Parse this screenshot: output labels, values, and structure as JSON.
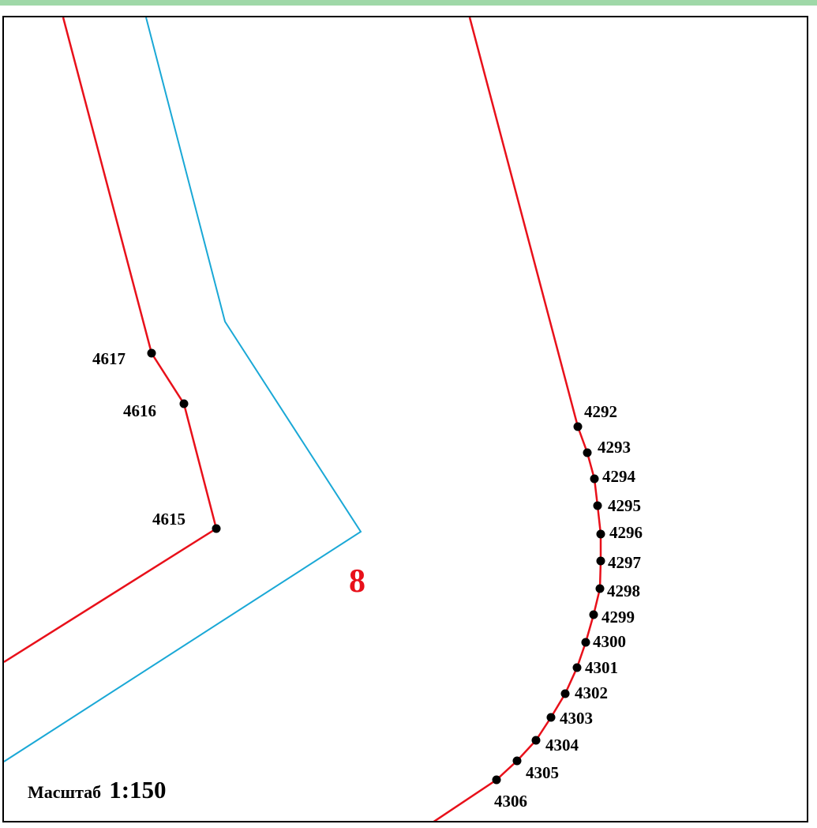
{
  "colors": {
    "boundary_red": "#e8101a",
    "boundary_blue": "#1aa8d6",
    "point_fill": "#000000",
    "parcel_label": "#e8101a",
    "top_strip": "#9fd8a8",
    "frame": "#000000"
  },
  "map": {
    "parcel_number": "8",
    "scale_word": "Масштаб",
    "scale_value": "1:150",
    "point_numbers": {
      "4617": "4617",
      "4616": "4616",
      "4615": "4615",
      "4292": "4292",
      "4293": "4293",
      "4294": "4294",
      "4295": "4295",
      "4296": "4296",
      "4297": "4297",
      "4298": "4298",
      "4299": "4299",
      "4300": "4300",
      "4301": "4301",
      "4302": "4302",
      "4303": "4303",
      "4304": "4304",
      "4305": "4305",
      "4306": "4306"
    }
  }
}
